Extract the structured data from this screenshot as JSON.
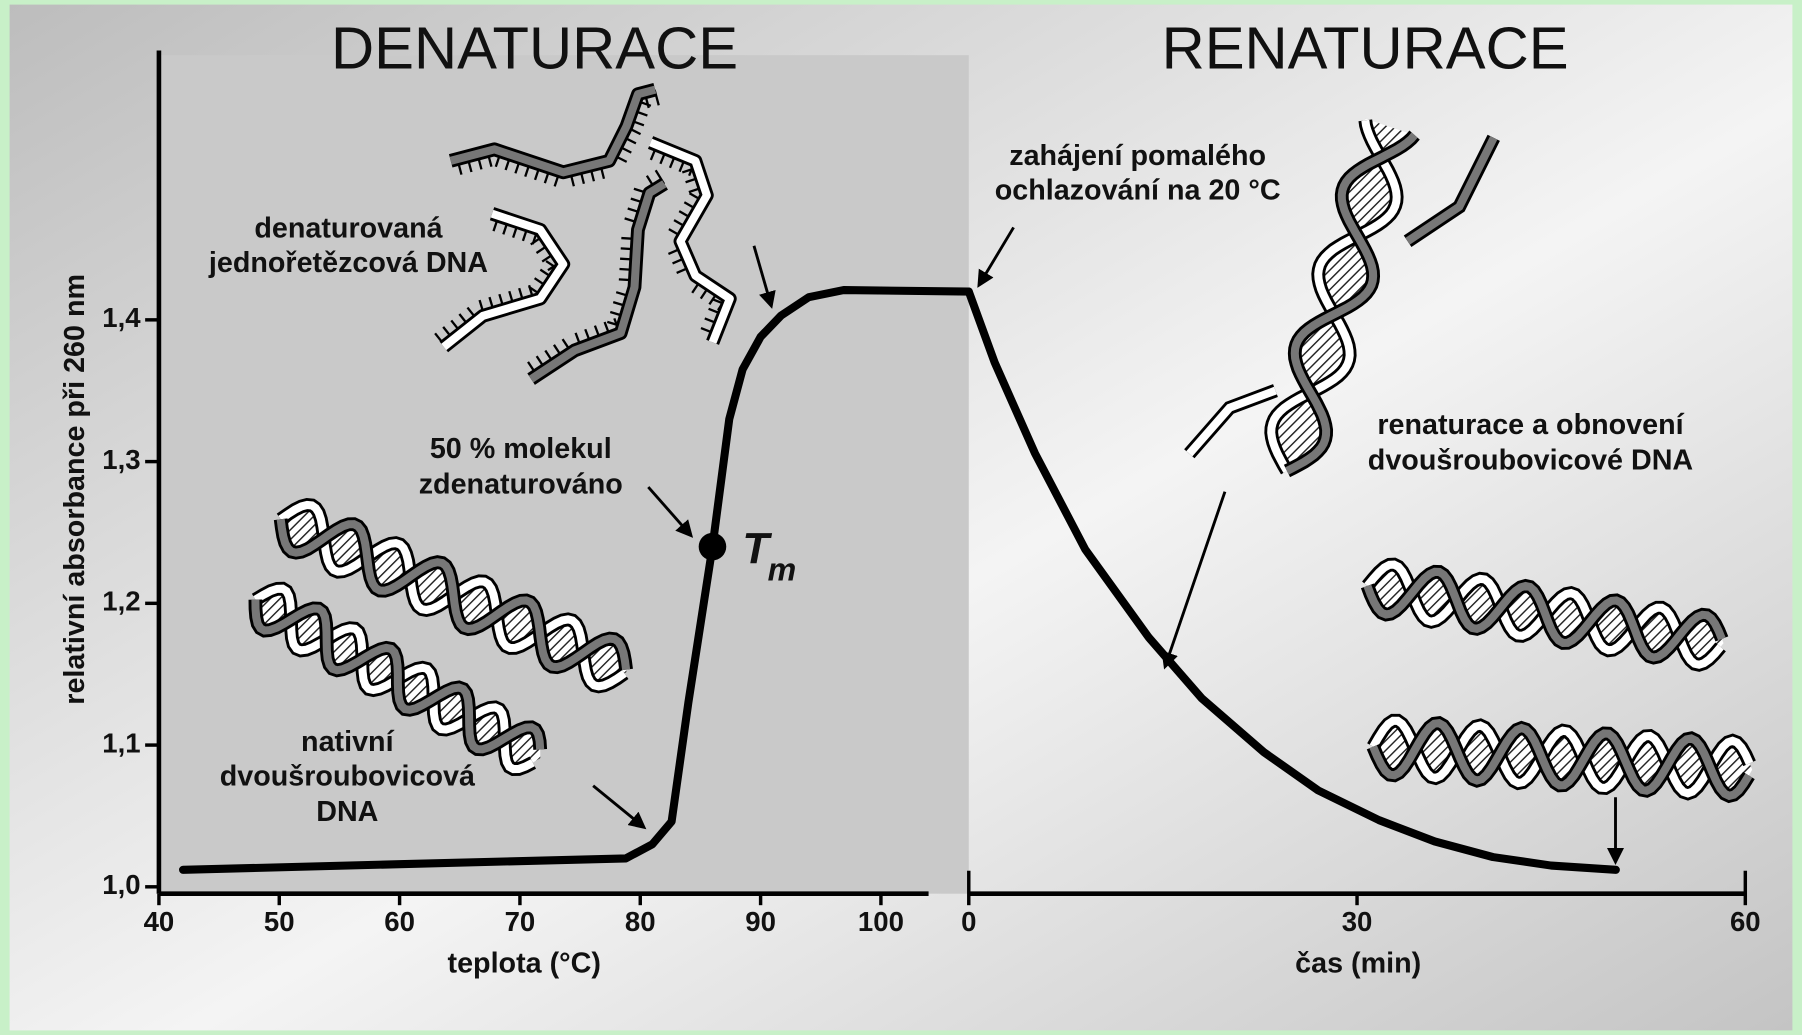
{
  "chart_data": [
    {
      "type": "line",
      "title": "DENATURACE",
      "x_label": "teplota (°C)",
      "y_label": "relativní absorbance při 260 nm",
      "xlim": [
        40,
        107.3
      ],
      "xticks": [
        40,
        50,
        60,
        70,
        80,
        90,
        100
      ],
      "ylim": [
        1.0,
        1.59
      ],
      "yticks": [
        {
          "value": 1.0,
          "label": "1,0"
        },
        {
          "value": 1.1,
          "label": "1,1"
        },
        {
          "value": 1.2,
          "label": "1,2"
        },
        {
          "value": 1.3,
          "label": "1,3"
        },
        {
          "value": 1.4,
          "label": "1,4"
        }
      ],
      "series": [
        {
          "color": "#000000",
          "x": [
            42,
            60,
            78.8,
            81,
            82.6,
            84,
            86,
            87.4,
            88.5,
            90,
            91.7,
            94,
            96.9,
            107.3
          ],
          "values": [
            1.012,
            1.016,
            1.02,
            1.03,
            1.046,
            1.13,
            1.24,
            1.33,
            1.365,
            1.388,
            1.403,
            1.416,
            1.421,
            1.42
          ]
        }
      ],
      "marker": {
        "x": 86,
        "y": 1.24,
        "label": "T",
        "sublabel": "m"
      },
      "annotations": [
        {
          "lines": [
            "denaturovaná",
            "jednořetězcová DNA"
          ]
        },
        {
          "lines": [
            "50 % molekul",
            "zdenaturováno"
          ]
        },
        {
          "lines": [
            "nativní",
            "dvoušroubovicová",
            "DNA"
          ]
        }
      ]
    },
    {
      "type": "line",
      "title": "RENATURACE",
      "x_label": "čas (min)",
      "xlim": [
        0,
        60
      ],
      "xticks": [
        0,
        30,
        60
      ],
      "ylim": [
        1.0,
        1.59
      ],
      "series": [
        {
          "color": "#000000",
          "x": [
            0,
            2,
            5.1,
            9,
            13.9,
            18,
            22.8,
            27,
            31.7,
            36,
            40.5,
            45,
            50
          ],
          "values": [
            1.42,
            1.37,
            1.306,
            1.238,
            1.176,
            1.133,
            1.095,
            1.068,
            1.047,
            1.032,
            1.021,
            1.015,
            1.012
          ]
        }
      ],
      "annotations": [
        {
          "lines": [
            "zahájení pomalého",
            "ochlazování na 20 °C"
          ]
        },
        {
          "lines": [
            "renaturace a obnovení",
            "dvoušroubovicové DNA"
          ]
        }
      ]
    }
  ]
}
